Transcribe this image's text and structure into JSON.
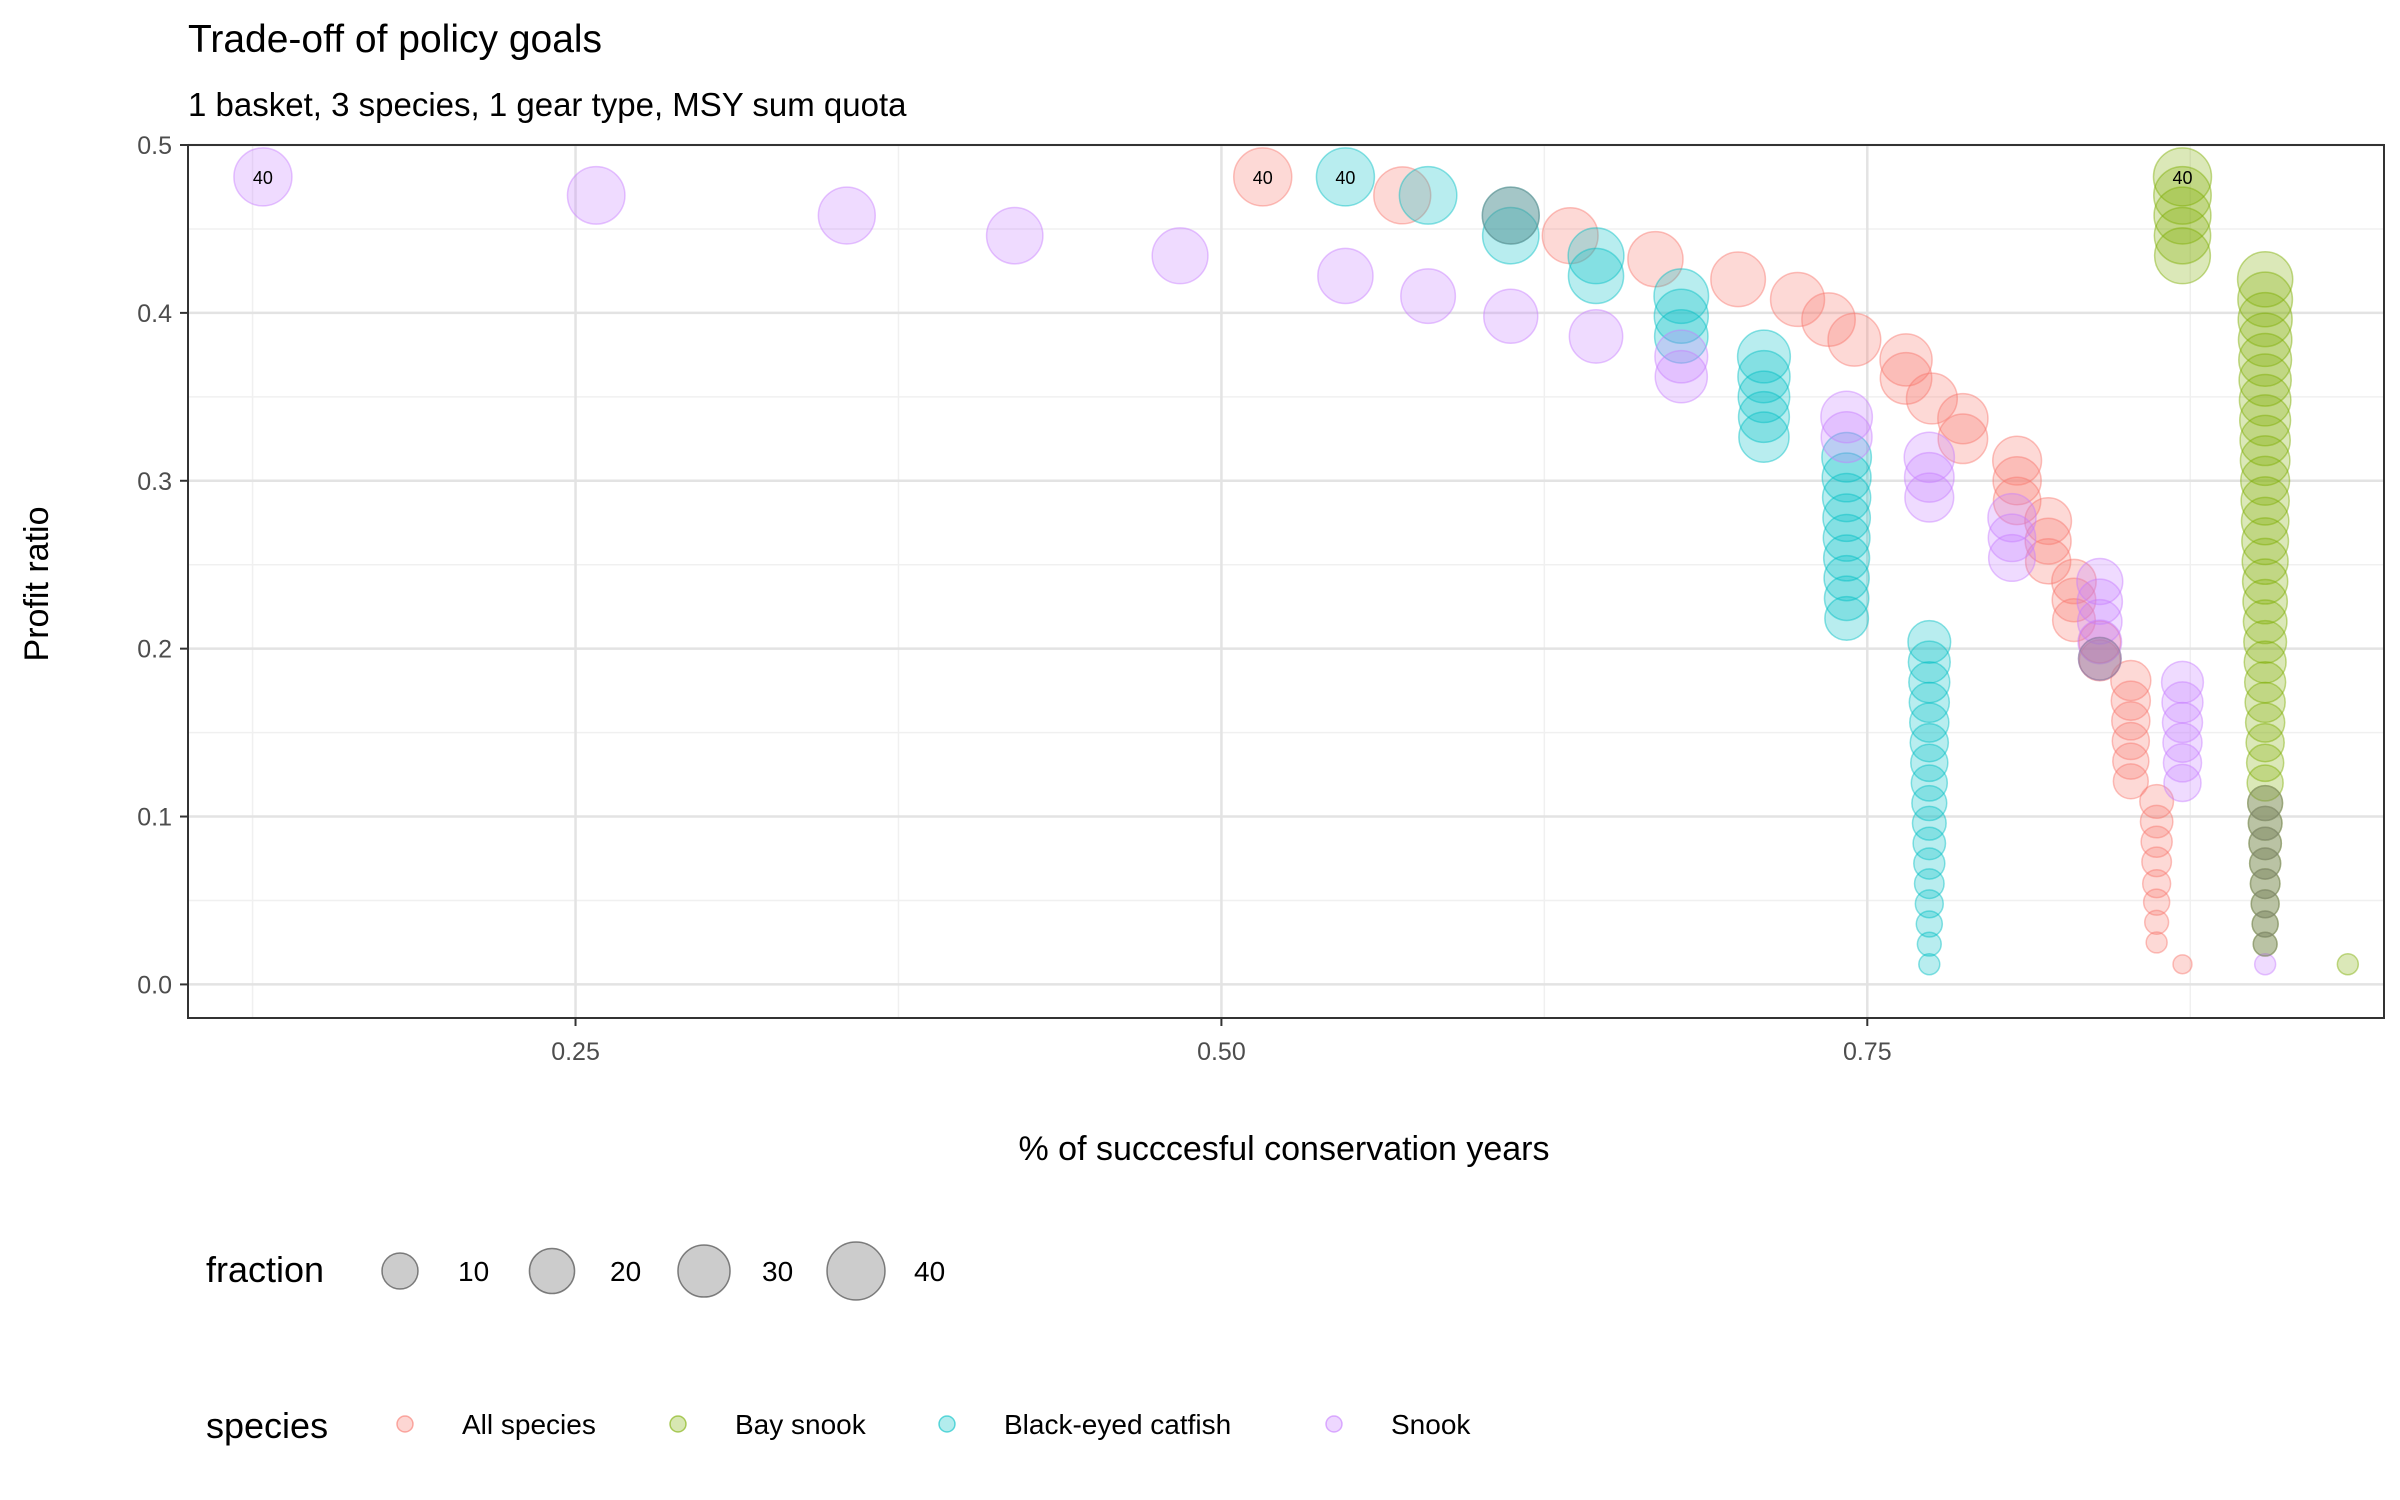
{
  "chart_data": {
    "type": "scatter",
    "title": "Trade-off of policy goals",
    "subtitle": "1 basket, 3 species, 1 gear type, MSY sum quota",
    "xlabel": "% of succcesful conservation years",
    "ylabel": "Profit ratio",
    "xlim": [
      0.1,
      0.95
    ],
    "ylim": [
      -0.02,
      0.5
    ],
    "x_ticks": [
      0.25,
      0.5,
      0.75
    ],
    "x_tick_labels": [
      "0.25",
      "0.50",
      "0.75"
    ],
    "y_ticks": [
      0.0,
      0.1,
      0.2,
      0.3,
      0.4,
      0.5
    ],
    "y_tick_labels": [
      "0.0",
      "0.1",
      "0.2",
      "0.3",
      "0.4",
      "0.5"
    ],
    "grid": true,
    "size_legend": {
      "title": "fraction",
      "values": [
        10,
        20,
        30,
        40
      ],
      "labels": [
        "10",
        "20",
        "30",
        "40"
      ]
    },
    "color_legend": {
      "title": "species",
      "placement": "bottom"
    },
    "series": [
      {
        "name": "All species",
        "color": "#F8766D",
        "points": [
          [
            0.516,
            0.481,
            40
          ],
          [
            0.57,
            0.47,
            38
          ],
          [
            0.635,
            0.446,
            36
          ],
          [
            0.668,
            0.432,
            35
          ],
          [
            0.7,
            0.42,
            34
          ],
          [
            0.723,
            0.408,
            33
          ],
          [
            0.735,
            0.396,
            32
          ],
          [
            0.745,
            0.384,
            31
          ],
          [
            0.765,
            0.372,
            30
          ],
          [
            0.765,
            0.361,
            29
          ],
          [
            0.775,
            0.349,
            28
          ],
          [
            0.787,
            0.337,
            27
          ],
          [
            0.787,
            0.325,
            26
          ],
          [
            0.808,
            0.312,
            25
          ],
          [
            0.808,
            0.3,
            24
          ],
          [
            0.808,
            0.288,
            23
          ],
          [
            0.82,
            0.276,
            22
          ],
          [
            0.82,
            0.264,
            21
          ],
          [
            0.82,
            0.252,
            20
          ],
          [
            0.83,
            0.24,
            19
          ],
          [
            0.83,
            0.229,
            18
          ],
          [
            0.83,
            0.217,
            17
          ],
          [
            0.84,
            0.204,
            16
          ],
          [
            0.84,
            0.193,
            15
          ],
          [
            0.852,
            0.181,
            14
          ],
          [
            0.852,
            0.169,
            13
          ],
          [
            0.852,
            0.157,
            12
          ],
          [
            0.852,
            0.145,
            11
          ],
          [
            0.852,
            0.133,
            10
          ],
          [
            0.852,
            0.121,
            9
          ],
          [
            0.862,
            0.109,
            8
          ],
          [
            0.862,
            0.097,
            7
          ],
          [
            0.862,
            0.085,
            6
          ],
          [
            0.862,
            0.073,
            5
          ],
          [
            0.862,
            0.06,
            4
          ],
          [
            0.862,
            0.049,
            3
          ],
          [
            0.862,
            0.037,
            2
          ],
          [
            0.862,
            0.025,
            1
          ],
          [
            0.872,
            0.012,
            0.5
          ]
        ]
      },
      {
        "name": "Bay snook",
        "color": "#7CAE00",
        "points": [
          [
            0.872,
            0.481,
            40
          ],
          [
            0.872,
            0.47,
            39
          ],
          [
            0.872,
            0.458,
            38
          ],
          [
            0.872,
            0.446,
            37
          ],
          [
            0.872,
            0.434,
            36
          ],
          [
            0.904,
            0.42,
            35
          ],
          [
            0.904,
            0.408,
            34
          ],
          [
            0.904,
            0.396,
            33
          ],
          [
            0.904,
            0.384,
            32
          ],
          [
            0.904,
            0.372,
            31
          ],
          [
            0.904,
            0.36,
            30
          ],
          [
            0.904,
            0.348,
            29
          ],
          [
            0.904,
            0.336,
            28
          ],
          [
            0.904,
            0.324,
            27
          ],
          [
            0.904,
            0.312,
            26
          ],
          [
            0.904,
            0.3,
            25
          ],
          [
            0.904,
            0.288,
            24
          ],
          [
            0.904,
            0.276,
            23
          ],
          [
            0.904,
            0.264,
            22
          ],
          [
            0.904,
            0.252,
            21
          ],
          [
            0.904,
            0.24,
            20
          ],
          [
            0.904,
            0.228,
            19
          ],
          [
            0.904,
            0.216,
            18
          ],
          [
            0.904,
            0.204,
            17
          ],
          [
            0.904,
            0.192,
            16
          ],
          [
            0.904,
            0.18,
            15
          ],
          [
            0.904,
            0.168,
            14
          ],
          [
            0.904,
            0.156,
            13
          ],
          [
            0.904,
            0.144,
            12
          ],
          [
            0.904,
            0.132,
            11
          ],
          [
            0.904,
            0.12,
            10
          ],
          [
            0.904,
            0.108,
            9
          ],
          [
            0.904,
            0.096,
            8
          ],
          [
            0.904,
            0.084,
            7
          ],
          [
            0.904,
            0.072,
            6
          ],
          [
            0.904,
            0.06,
            5
          ],
          [
            0.904,
            0.048,
            4
          ],
          [
            0.904,
            0.036,
            3
          ],
          [
            0.904,
            0.024,
            2
          ],
          [
            0.936,
            0.012,
            1
          ]
        ]
      },
      {
        "name": "Black-eyed catfish",
        "color": "#00BFC4",
        "points": [
          [
            0.548,
            0.481,
            40
          ],
          [
            0.58,
            0.47,
            39
          ],
          [
            0.612,
            0.458,
            38
          ],
          [
            0.612,
            0.446,
            37
          ],
          [
            0.645,
            0.434,
            36
          ],
          [
            0.645,
            0.422,
            35
          ],
          [
            0.678,
            0.41,
            34
          ],
          [
            0.678,
            0.398,
            33
          ],
          [
            0.678,
            0.386,
            32
          ],
          [
            0.71,
            0.374,
            31
          ],
          [
            0.71,
            0.362,
            30
          ],
          [
            0.71,
            0.35,
            29
          ],
          [
            0.71,
            0.338,
            28
          ],
          [
            0.71,
            0.326,
            27
          ],
          [
            0.742,
            0.314,
            26
          ],
          [
            0.742,
            0.302,
            25
          ],
          [
            0.742,
            0.29,
            24
          ],
          [
            0.742,
            0.278,
            23
          ],
          [
            0.742,
            0.266,
            22
          ],
          [
            0.742,
            0.254,
            21
          ],
          [
            0.742,
            0.242,
            20
          ],
          [
            0.742,
            0.23,
            19
          ],
          [
            0.742,
            0.218,
            18
          ],
          [
            0.774,
            0.204,
            17
          ],
          [
            0.774,
            0.192,
            16
          ],
          [
            0.774,
            0.18,
            15
          ],
          [
            0.774,
            0.168,
            14
          ],
          [
            0.774,
            0.156,
            13
          ],
          [
            0.774,
            0.144,
            12
          ],
          [
            0.774,
            0.132,
            11
          ],
          [
            0.774,
            0.12,
            10
          ],
          [
            0.774,
            0.108,
            9
          ],
          [
            0.774,
            0.096,
            8
          ],
          [
            0.774,
            0.084,
            7
          ],
          [
            0.774,
            0.072,
            6
          ],
          [
            0.774,
            0.06,
            5
          ],
          [
            0.774,
            0.048,
            4
          ],
          [
            0.774,
            0.036,
            3
          ],
          [
            0.774,
            0.024,
            2
          ],
          [
            0.774,
            0.012,
            1
          ]
        ]
      },
      {
        "name": "Snook",
        "color": "#C77CFF",
        "points": [
          [
            0.129,
            0.481,
            40
          ],
          [
            0.258,
            0.47,
            39
          ],
          [
            0.355,
            0.458,
            38
          ],
          [
            0.42,
            0.446,
            37
          ],
          [
            0.484,
            0.434,
            36
          ],
          [
            0.548,
            0.422,
            35
          ],
          [
            0.58,
            0.41,
            34
          ],
          [
            0.612,
            0.398,
            33
          ],
          [
            0.645,
            0.386,
            32
          ],
          [
            0.678,
            0.374,
            31
          ],
          [
            0.678,
            0.362,
            30
          ],
          [
            0.742,
            0.338,
            29
          ],
          [
            0.742,
            0.326,
            28
          ],
          [
            0.774,
            0.314,
            27
          ],
          [
            0.774,
            0.302,
            26
          ],
          [
            0.774,
            0.29,
            25
          ],
          [
            0.806,
            0.278,
            24
          ],
          [
            0.806,
            0.266,
            23
          ],
          [
            0.806,
            0.254,
            22
          ],
          [
            0.84,
            0.24,
            21
          ],
          [
            0.84,
            0.228,
            20
          ],
          [
            0.84,
            0.216,
            19
          ],
          [
            0.84,
            0.204,
            18
          ],
          [
            0.84,
            0.194,
            17
          ],
          [
            0.872,
            0.18,
            16
          ],
          [
            0.872,
            0.168,
            15
          ],
          [
            0.872,
            0.156,
            14
          ],
          [
            0.872,
            0.144,
            13
          ],
          [
            0.872,
            0.132,
            12
          ],
          [
            0.872,
            0.12,
            11
          ],
          [
            0.904,
            0.012,
            1
          ]
        ]
      },
      {
        "name": "",
        "color": "#7F7F7F",
        "points": [
          [
            0.612,
            0.458,
            38
          ],
          [
            0.904,
            0.108,
            9
          ],
          [
            0.904,
            0.096,
            8
          ],
          [
            0.904,
            0.084,
            7
          ],
          [
            0.904,
            0.072,
            6
          ],
          [
            0.904,
            0.06,
            5
          ],
          [
            0.904,
            0.048,
            4
          ],
          [
            0.904,
            0.036,
            3
          ],
          [
            0.904,
            0.024,
            2
          ],
          [
            0.84,
            0.194,
            17
          ]
        ]
      }
    ],
    "point_labels": [
      {
        "x": 0.129,
        "y": 0.481,
        "text": "40"
      },
      {
        "x": 0.516,
        "y": 0.481,
        "text": "40"
      },
      {
        "x": 0.548,
        "y": 0.481,
        "text": "40"
      },
      {
        "x": 0.872,
        "y": 0.481,
        "text": "40"
      }
    ]
  }
}
